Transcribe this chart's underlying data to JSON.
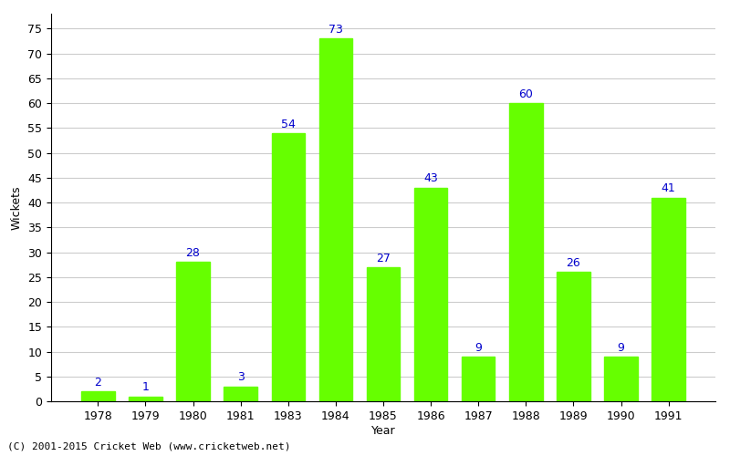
{
  "years": [
    "1978",
    "1979",
    "1980",
    "1981",
    "1983",
    "1984",
    "1985",
    "1986",
    "1987",
    "1988",
    "1989",
    "1990",
    "1991"
  ],
  "wickets": [
    2,
    1,
    28,
    3,
    54,
    73,
    27,
    43,
    9,
    60,
    26,
    9,
    41
  ],
  "bar_color": "#66ff00",
  "bar_edge_color": "#66ff00",
  "label_color": "#0000cc",
  "ylabel": "Wickets",
  "xlabel": "Year",
  "ylim": [
    0,
    78
  ],
  "yticks": [
    0,
    5,
    10,
    15,
    20,
    25,
    30,
    35,
    40,
    45,
    50,
    55,
    60,
    65,
    70,
    75
  ],
  "background_color": "#ffffff",
  "grid_color": "#cccccc",
  "footer": "(C) 2001-2015 Cricket Web (www.cricketweb.net)",
  "label_fontsize": 9,
  "axis_label_fontsize": 9,
  "footer_fontsize": 8
}
